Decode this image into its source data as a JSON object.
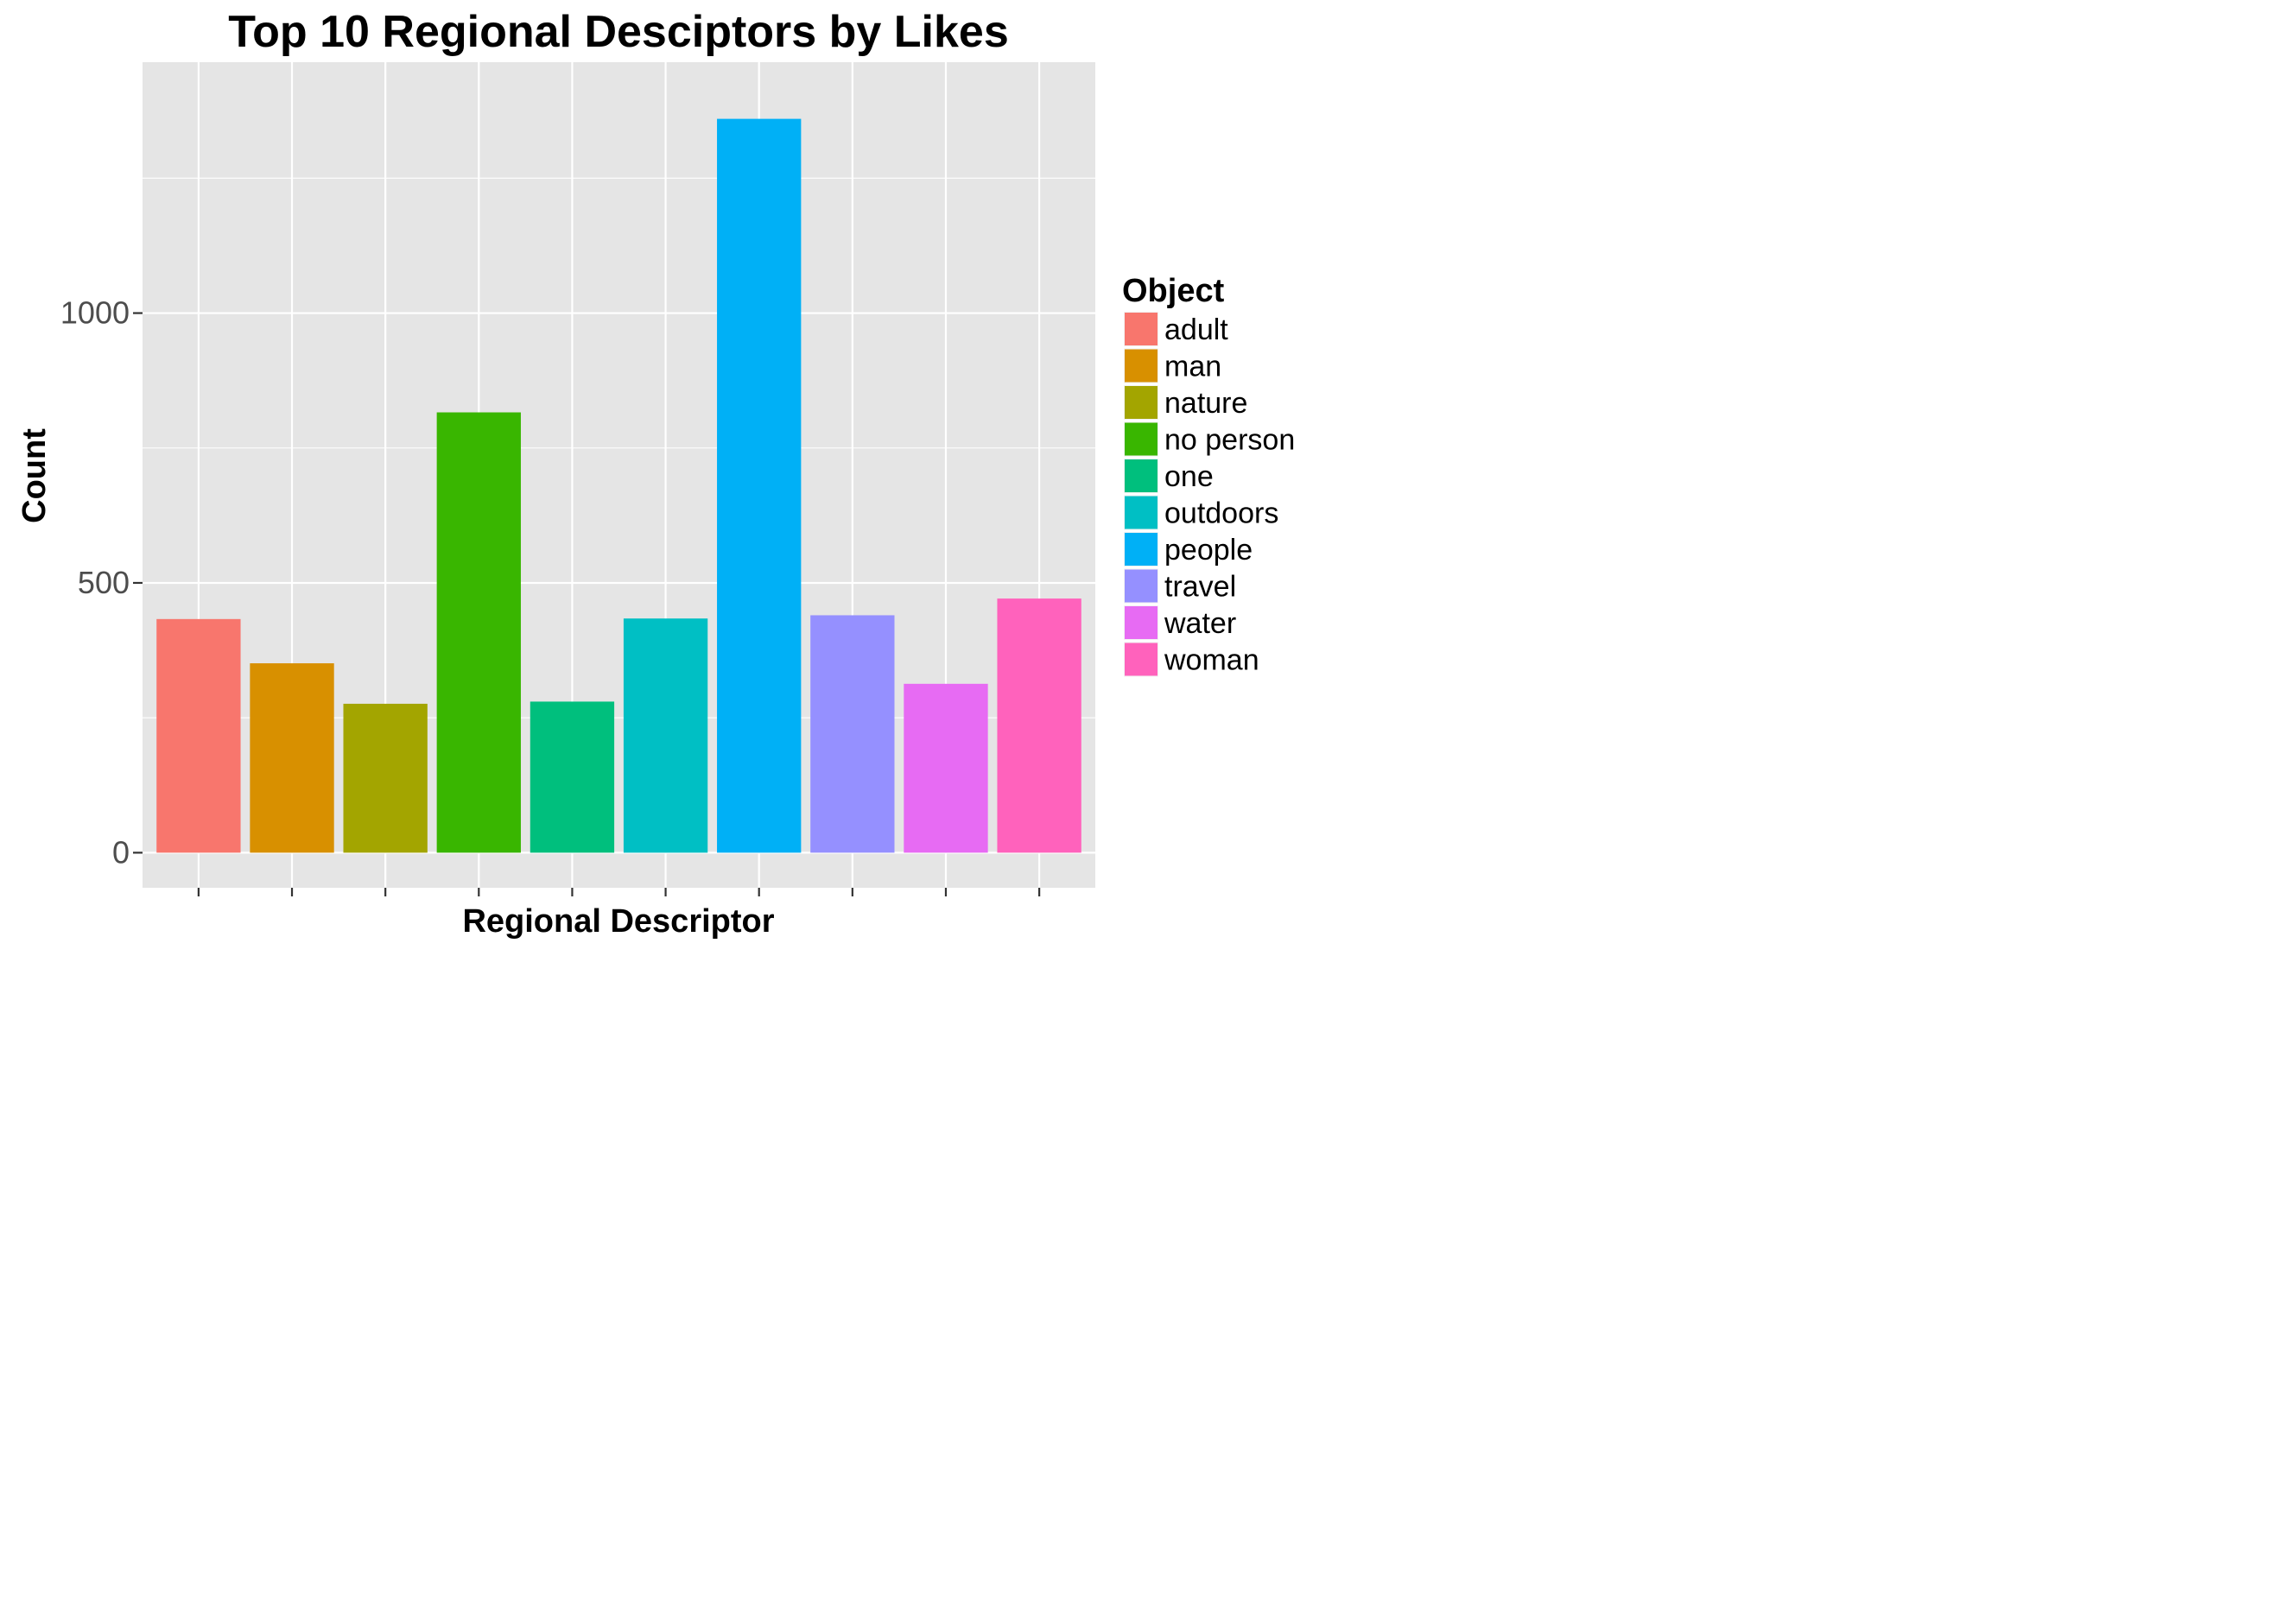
{
  "chart_data": {
    "type": "bar",
    "title": "Top 10 Regional Desciptors by Likes",
    "xlabel": "Regional Descriptor",
    "ylabel": "Count",
    "categories": [
      "adult",
      "man",
      "nature",
      "no person",
      "one",
      "outdoors",
      "people",
      "travel",
      "water",
      "woman"
    ],
    "values": [
      433,
      351,
      276,
      816,
      280,
      434,
      1360,
      440,
      313,
      471
    ],
    "colors": [
      "#F8766D",
      "#D89000",
      "#A3A500",
      "#39B600",
      "#00BF7D",
      "#00BFC4",
      "#00B0F6",
      "#9590FF",
      "#E76BF3",
      "#FF62BC"
    ],
    "ylim": [
      -65,
      1465
    ],
    "yticks": [
      0,
      500,
      1000
    ],
    "grid": true,
    "x_tick_labels_shown": false,
    "legend": {
      "title": "Object",
      "position": "right"
    },
    "background_color": "#E5E5E5",
    "grid_color": "#FFFFFF"
  }
}
